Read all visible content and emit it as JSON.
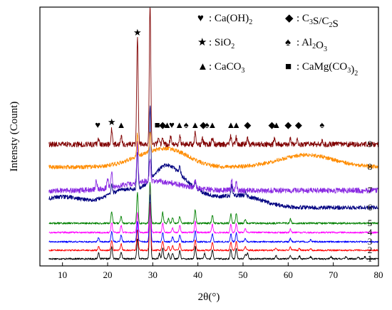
{
  "chart_data": {
    "type": "line",
    "title": "",
    "xlabel": "2θ(°)",
    "ylabel": "Intensty (Count)",
    "xlim": [
      5,
      80
    ],
    "x_ticks": [
      10,
      20,
      30,
      40,
      50,
      60,
      70,
      80
    ],
    "y_ticks": "none",
    "grid": false,
    "legend_position": "top-right",
    "legend": [
      {
        "symbol": "♥",
        "name": "heart",
        "label": "Ca(OH)",
        "sub": "2"
      },
      {
        "symbol": "◆",
        "name": "diamond",
        "label": "C",
        "sub": "3",
        "label2": "S/C",
        "sub2": "2",
        "label3": "S"
      },
      {
        "symbol": "★",
        "name": "star",
        "label": "SiO",
        "sub": "2"
      },
      {
        "symbol": "♠",
        "name": "spade",
        "label": "Al",
        "sub": "2",
        "label2": "O",
        "sub2": "3"
      },
      {
        "symbol": "▲",
        "name": "triangle",
        "label": "CaCO",
        "sub": "3"
      },
      {
        "symbol": "■",
        "name": "square",
        "label": "CaMg(CO",
        "sub": "3",
        "label2": ")",
        "sub2": "2"
      }
    ],
    "series": [
      {
        "name": "1",
        "color": "#000000",
        "x_start": 7,
        "x_end": 80,
        "baseline": 0.0,
        "noise": 0.12,
        "broad": [],
        "peaks": [
          [
            18.0,
            0.9
          ],
          [
            20.9,
            1.8
          ],
          [
            23.0,
            1.0
          ],
          [
            26.6,
            3.0
          ],
          [
            29.4,
            8.5
          ],
          [
            31.5,
            0.8
          ],
          [
            32.2,
            1.6
          ],
          [
            33.5,
            0.8
          ],
          [
            34.4,
            0.9
          ],
          [
            36.0,
            1.2
          ],
          [
            39.4,
            1.8
          ],
          [
            41.5,
            0.8
          ],
          [
            43.2,
            1.3
          ],
          [
            47.3,
            1.4
          ],
          [
            48.5,
            1.6
          ],
          [
            50.5,
            0.7
          ],
          [
            51.0,
            0.8
          ],
          [
            57.3,
            0.5
          ],
          [
            60.5,
            0.5
          ],
          [
            62.5,
            0.4
          ],
          [
            65.0,
            0.3
          ],
          [
            69.5,
            0.3
          ],
          [
            72.8,
            0.3
          ],
          [
            75.5,
            0.3
          ],
          [
            77.0,
            0.3
          ]
        ]
      },
      {
        "name": "2",
        "color": "#ff0000",
        "x_start": 7,
        "x_end": 80,
        "baseline": 0.0,
        "noise": 0.12,
        "broad": [],
        "peaks": [
          [
            18.0,
            0.6
          ],
          [
            20.9,
            1.5
          ],
          [
            23.0,
            1.0
          ],
          [
            26.6,
            3.0
          ],
          [
            29.4,
            7.0
          ],
          [
            32.2,
            1.4
          ],
          [
            33.5,
            0.6
          ],
          [
            34.4,
            0.7
          ],
          [
            36.0,
            1.0
          ],
          [
            39.4,
            1.6
          ],
          [
            43.2,
            1.2
          ],
          [
            47.3,
            1.2
          ],
          [
            48.5,
            1.3
          ],
          [
            50.5,
            0.5
          ],
          [
            57.3,
            0.4
          ],
          [
            60.5,
            0.5
          ],
          [
            62.5,
            0.3
          ],
          [
            65.0,
            0.3
          ]
        ]
      },
      {
        "name": "3",
        "color": "#0000ff",
        "x_start": 7,
        "x_end": 80,
        "baseline": 0.0,
        "noise": 0.12,
        "broad": [],
        "peaks": [
          [
            18.0,
            0.6
          ],
          [
            20.9,
            1.5
          ],
          [
            23.0,
            1.0
          ],
          [
            26.6,
            3.0
          ],
          [
            29.4,
            7.0
          ],
          [
            32.2,
            1.4
          ],
          [
            34.4,
            0.7
          ],
          [
            36.0,
            1.0
          ],
          [
            39.4,
            1.6
          ],
          [
            43.2,
            1.2
          ],
          [
            47.3,
            1.2
          ],
          [
            48.5,
            1.3
          ],
          [
            50.5,
            0.5
          ],
          [
            60.5,
            0.5
          ],
          [
            65.0,
            0.3
          ]
        ]
      },
      {
        "name": "4",
        "color": "#ff00ff",
        "x_start": 7,
        "x_end": 80,
        "baseline": 0.0,
        "noise": 0.12,
        "broad": [],
        "peaks": [
          [
            20.9,
            1.5
          ],
          [
            23.0,
            1.0
          ],
          [
            26.6,
            3.0
          ],
          [
            29.4,
            7.0
          ],
          [
            32.2,
            1.4
          ],
          [
            34.4,
            0.7
          ],
          [
            36.0,
            1.0
          ],
          [
            39.4,
            1.6
          ],
          [
            43.2,
            1.2
          ],
          [
            47.3,
            1.2
          ],
          [
            48.5,
            1.3
          ],
          [
            50.5,
            0.5
          ],
          [
            60.5,
            0.5
          ]
        ]
      },
      {
        "name": "5",
        "color": "#008000",
        "x_start": 7,
        "x_end": 80,
        "baseline": 0.0,
        "noise": 0.14,
        "broad": [],
        "peaks": [
          [
            20.9,
            1.7
          ],
          [
            23.0,
            1.0
          ],
          [
            26.6,
            4.5
          ],
          [
            29.4,
            6.0
          ],
          [
            32.2,
            1.6
          ],
          [
            33.5,
            0.7
          ],
          [
            34.4,
            0.8
          ],
          [
            36.0,
            1.0
          ],
          [
            39.4,
            2.0
          ],
          [
            43.2,
            1.2
          ],
          [
            47.3,
            1.4
          ],
          [
            48.5,
            1.4
          ],
          [
            50.5,
            0.6
          ],
          [
            60.5,
            0.6
          ]
        ]
      },
      {
        "name": "6",
        "color": "#000080",
        "x_start": 7,
        "x_end": 80,
        "baseline": 0.0,
        "noise": 0.3,
        "broad": [
          [
            10,
            1.6,
            5
          ],
          [
            24,
            2.6,
            4
          ],
          [
            32.5,
            4.4,
            3
          ],
          [
            37,
            2.8,
            4
          ],
          [
            49,
            1.8,
            5
          ]
        ],
        "peaks": [
          [
            20.9,
            1.2
          ],
          [
            26.6,
            5.5
          ],
          [
            29.4,
            11.0
          ],
          [
            36.0,
            1.0
          ],
          [
            39.4,
            1.0
          ],
          [
            47.5,
            1.4
          ],
          [
            50.5,
            0.6
          ]
        ]
      },
      {
        "name": "7",
        "color": "#8a2be2",
        "x_start": 7,
        "x_end": 80,
        "baseline": 0.0,
        "noise": 0.4,
        "broad": [
          [
            30,
            1.4,
            6
          ]
        ],
        "peaks": [
          [
            17.5,
            1.2
          ],
          [
            20.0,
            1.6
          ],
          [
            20.9,
            2.4
          ],
          [
            26.6,
            6.0
          ],
          [
            29.4,
            3.2
          ],
          [
            39.4,
            1.0
          ],
          [
            47.5,
            1.5
          ],
          [
            48.5,
            1.2
          ]
        ]
      },
      {
        "name": "8",
        "color": "#ff8c00",
        "x_start": 7,
        "x_end": 80,
        "baseline": 0.0,
        "noise": 0.3,
        "broad": [
          [
            30,
            1.8,
            5
          ],
          [
            35,
            1.4,
            4
          ],
          [
            64,
            1.8,
            6
          ]
        ],
        "peaks": [
          [
            26.6,
            3.4
          ],
          [
            29.4,
            3.0
          ]
        ]
      },
      {
        "name": "9",
        "color": "#800000",
        "x_start": 7,
        "x_end": 80,
        "baseline": 0.0,
        "noise": 0.4,
        "broad": [],
        "peaks": [
          [
            18.0,
            0.8
          ],
          [
            20.9,
            2.2
          ],
          [
            23.0,
            1.2
          ],
          [
            26.6,
            16.0
          ],
          [
            29.4,
            21.0
          ],
          [
            31.3,
            1.0
          ],
          [
            32.2,
            1.0
          ],
          [
            34.0,
            1.2
          ],
          [
            36.0,
            1.4
          ],
          [
            39.4,
            1.6
          ],
          [
            41.0,
            0.8
          ],
          [
            43.2,
            1.0
          ],
          [
            47.3,
            1.2
          ],
          [
            48.5,
            1.0
          ],
          [
            51.0,
            0.8
          ],
          [
            57.0,
            0.8
          ],
          [
            60.5,
            0.9
          ],
          [
            62.0,
            0.7
          ],
          [
            67.5,
            0.6
          ]
        ]
      }
    ],
    "phase_markers": [
      {
        "symbol": "♥",
        "name": "heart",
        "x": 17.8
      },
      {
        "symbol": "★",
        "name": "star",
        "x": 20.9
      },
      {
        "symbol": "▲",
        "name": "triangle",
        "x": 23.0
      },
      {
        "symbol": "★",
        "name": "star",
        "x": 26.6
      },
      {
        "symbol": "■",
        "name": "square",
        "x": 31.0
      },
      {
        "symbol": "◆",
        "name": "diamond",
        "x": 32.2
      },
      {
        "symbol": "▲",
        "name": "triangle",
        "x": 33.2
      },
      {
        "symbol": "♥",
        "name": "heart",
        "x": 34.2
      },
      {
        "symbol": "▲",
        "name": "triangle",
        "x": 35.9
      },
      {
        "symbol": "♠",
        "name": "spade",
        "x": 37.4
      },
      {
        "symbol": "▲",
        "name": "triangle",
        "x": 39.4
      },
      {
        "symbol": "◆",
        "name": "diamond",
        "x": 41.2
      },
      {
        "symbol": "♠",
        "name": "spade",
        "x": 42.0
      },
      {
        "symbol": "▲",
        "name": "triangle",
        "x": 43.2
      },
      {
        "symbol": "▲",
        "name": "triangle",
        "x": 47.3
      },
      {
        "symbol": "▲",
        "name": "triangle",
        "x": 48.5
      },
      {
        "symbol": "◆",
        "name": "diamond",
        "x": 51.0
      },
      {
        "symbol": "◆",
        "name": "diamond",
        "x": 56.4
      },
      {
        "symbol": "▲",
        "name": "triangle",
        "x": 57.4
      },
      {
        "symbol": "◆",
        "name": "diamond",
        "x": 60.0
      },
      {
        "symbol": "◆",
        "name": "diamond",
        "x": 62.3
      },
      {
        "symbol": "♠",
        "name": "spade",
        "x": 67.5
      }
    ]
  }
}
